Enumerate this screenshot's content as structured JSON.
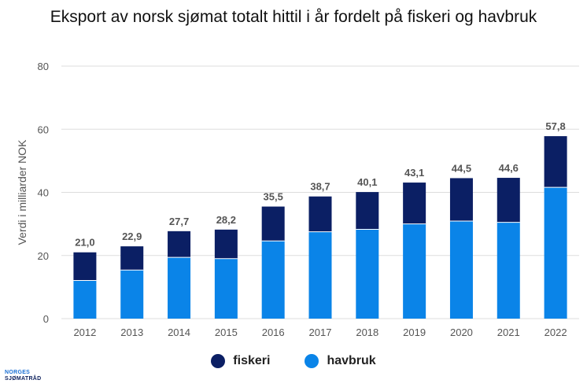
{
  "logo": {
    "line1": "NORGES",
    "line2": "SJØMATRÅD"
  },
  "colors": {
    "fiskeri": "#0b1f64",
    "havbruk": "#0a84e8",
    "grid": "#dddddd",
    "axis_text": "#555555",
    "label_text": "#555555"
  },
  "chart_data": {
    "type": "bar",
    "stacked": true,
    "title": "Eksport av norsk sjømat totalt hittil i år fordelt på fiskeri og havbruk",
    "ylabel": "Verdi i milliarder NOK",
    "xlabel": "",
    "ylim": [
      0,
      80
    ],
    "yticks": [
      0,
      20,
      40,
      60,
      80
    ],
    "grid": true,
    "legend_position": "bottom",
    "categories": [
      "2012",
      "2013",
      "2014",
      "2015",
      "2016",
      "2017",
      "2018",
      "2019",
      "2020",
      "2021",
      "2022"
    ],
    "series": [
      {
        "name": "havbruk",
        "values": [
          12.1,
          15.4,
          19.4,
          19.0,
          24.6,
          27.5,
          28.3,
          30.0,
          30.9,
          30.5,
          41.6
        ]
      },
      {
        "name": "fiskeri",
        "values": [
          8.9,
          7.5,
          8.3,
          9.2,
          10.9,
          11.2,
          11.8,
          13.1,
          13.6,
          14.1,
          16.2
        ]
      }
    ],
    "totals_labels": [
      "21,0",
      "22,9",
      "27,7",
      "28,2",
      "35,5",
      "38,7",
      "40,1",
      "43,1",
      "44,5",
      "44,6",
      "57,8"
    ],
    "legend": [
      {
        "label": "fiskeri",
        "series": "fiskeri"
      },
      {
        "label": "havbruk",
        "series": "havbruk"
      }
    ]
  }
}
